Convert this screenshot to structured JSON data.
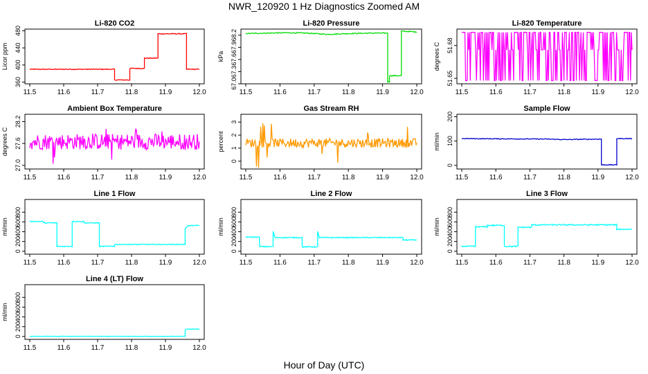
{
  "title": "NWR_120920  1 Hz Diagnostics Zoomed AM",
  "xlabel": "Hour of Day (UTC)",
  "x_ticks": [
    "11.5",
    "11.6",
    "11.7",
    "11.8",
    "11.9",
    "12.0"
  ],
  "chart_data": [
    {
      "type": "line",
      "title": "Li-820 CO2",
      "ylabel": "Licor ppm",
      "color": "#ff0000",
      "xlim": [
        11.5,
        12.0
      ],
      "ylim": [
        356,
        484
      ],
      "y_ticks": [
        "360",
        "400",
        "440",
        "480"
      ],
      "y_tick_values": [
        360,
        400,
        440,
        480
      ],
      "noise": 1,
      "series": [
        {
          "points": [
            [
              11.5,
              390
            ],
            [
              11.75,
              390
            ],
            [
              11.75,
              365
            ],
            [
              11.795,
              365
            ],
            [
              11.795,
              392
            ],
            [
              11.838,
              392
            ],
            [
              11.838,
              416
            ],
            [
              11.878,
              416
            ],
            [
              11.878,
              473
            ],
            [
              11.962,
              473
            ],
            [
              11.962,
              390
            ],
            [
              12.0,
              390
            ]
          ]
        }
      ]
    },
    {
      "type": "line",
      "title": "Li-820 Pressure",
      "ylabel": "kPa",
      "color": "#00dd00",
      "xlim": [
        11.5,
        12.0
      ],
      "ylim": [
        67.0,
        68.35
      ],
      "y_ticks": [
        "67.0",
        "67.3",
        "67.6",
        "67.9",
        "68.2"
      ],
      "y_tick_values": [
        67.0,
        67.3,
        67.6,
        67.9,
        68.2
      ],
      "noise": 0.012,
      "series": [
        {
          "points": [
            [
              11.5,
              68.24
            ],
            [
              11.56,
              68.25
            ],
            [
              11.62,
              68.26
            ],
            [
              11.68,
              68.25
            ],
            [
              11.74,
              68.22
            ],
            [
              11.8,
              68.24
            ],
            [
              11.86,
              68.25
            ],
            [
              11.915,
              68.25
            ],
            [
              11.915,
              67.05
            ],
            [
              11.92,
              67.05
            ],
            [
              11.92,
              67.2
            ],
            [
              11.955,
              67.2
            ],
            [
              11.955,
              68.3
            ],
            [
              12.0,
              68.28
            ]
          ]
        }
      ]
    },
    {
      "type": "line",
      "title": "Li-820 Temperature",
      "ylabel": "degrees C",
      "color": "#ff00ff",
      "xlim": [
        11.5,
        12.0
      ],
      "ylim": [
        51.645,
        51.695
      ],
      "y_ticks": [
        "51.65",
        "51.68"
      ],
      "y_tick_values": [
        51.65,
        51.68
      ],
      "pattern": "bimodal",
      "levels": [
        51.648,
        51.692,
        51.676
      ]
    },
    {
      "type": "line",
      "title": "Ambient Box Temperature",
      "ylabel": "degrees C",
      "color": "#ff00ff",
      "xlim": [
        11.5,
        12.0
      ],
      "ylim": [
        26.9,
        28.4
      ],
      "y_ticks": [
        "27.0",
        "27.6",
        "28.2"
      ],
      "y_tick_values": [
        27.0,
        27.6,
        28.2
      ],
      "noise": 0.22,
      "spikes": 0.55,
      "series": [
        {
          "points": [
            [
              11.5,
              27.65
            ],
            [
              12.0,
              27.65
            ]
          ]
        }
      ]
    },
    {
      "type": "line",
      "title": "Gas Stream RH",
      "ylabel": "percent",
      "color": "#ff9900",
      "xlim": [
        11.5,
        12.0
      ],
      "ylim": [
        -0.6,
        3.6
      ],
      "y_ticks": [
        "0",
        "1",
        "2",
        "3"
      ],
      "y_tick_values": [
        0,
        1,
        2,
        3
      ],
      "noise": 0.35,
      "spikes": 1.8,
      "series": [
        {
          "points": [
            [
              11.5,
              1.4
            ],
            [
              12.0,
              1.4
            ]
          ]
        }
      ]
    },
    {
      "type": "line",
      "title": "Sample Flow",
      "ylabel": "ml/min",
      "color": "#0000cc",
      "xlim": [
        11.5,
        12.0
      ],
      "ylim": [
        -15,
        210
      ],
      "y_ticks": [
        "0",
        "100",
        "200"
      ],
      "y_tick_values": [
        0,
        100,
        200
      ],
      "noise": 1.5,
      "series": [
        {
          "points": [
            [
              11.5,
              110
            ],
            [
              11.75,
              108
            ],
            [
              11.8,
              106
            ],
            [
              11.91,
              108
            ],
            [
              11.91,
              2
            ],
            [
              11.955,
              2
            ],
            [
              11.955,
              110
            ],
            [
              12.0,
              110
            ]
          ]
        }
      ]
    },
    {
      "type": "line",
      "title": "Line 1 Flow",
      "ylabel": "ml/min",
      "color": "#00ffff",
      "xlim": [
        11.5,
        12.0
      ],
      "ylim": [
        -60,
        1060
      ],
      "y_ticks": [
        "0",
        "200",
        "400",
        "600",
        "800"
      ],
      "y_tick_values": [
        0,
        200,
        400,
        600,
        800
      ],
      "noise": 8,
      "series": [
        {
          "points": [
            [
              11.5,
              610
            ],
            [
              11.54,
              610
            ],
            [
              11.54,
              580
            ],
            [
              11.58,
              580
            ],
            [
              11.58,
              100
            ],
            [
              11.625,
              100
            ],
            [
              11.625,
              610
            ],
            [
              11.66,
              610
            ],
            [
              11.66,
              580
            ],
            [
              11.705,
              580
            ],
            [
              11.705,
              100
            ],
            [
              11.75,
              100
            ],
            [
              11.75,
              140
            ],
            [
              11.958,
              140
            ],
            [
              11.958,
              460
            ],
            [
              11.965,
              520
            ],
            [
              12.0,
              530
            ]
          ]
        }
      ]
    },
    {
      "type": "line",
      "title": "Line 2 Flow",
      "ylabel": "ml/min",
      "color": "#00ffff",
      "xlim": [
        11.5,
        12.0
      ],
      "ylim": [
        -60,
        1060
      ],
      "y_ticks": [
        "0",
        "200",
        "400",
        "600",
        "800"
      ],
      "y_tick_values": [
        0,
        200,
        400,
        600,
        800
      ],
      "noise": 10,
      "series": [
        {
          "points": [
            [
              11.5,
              290
            ],
            [
              11.54,
              290
            ],
            [
              11.54,
              95
            ],
            [
              11.58,
              95
            ],
            [
              11.58,
              410
            ],
            [
              11.585,
              280
            ],
            [
              11.665,
              280
            ],
            [
              11.665,
              90
            ],
            [
              11.71,
              90
            ],
            [
              11.71,
              400
            ],
            [
              11.715,
              280
            ],
            [
              11.96,
              280
            ],
            [
              11.96,
              230
            ],
            [
              12.0,
              230
            ]
          ]
        }
      ]
    },
    {
      "type": "line",
      "title": "Line 3 Flow",
      "ylabel": "ml/min",
      "color": "#00ffff",
      "xlim": [
        11.5,
        12.0
      ],
      "ylim": [
        -60,
        1060
      ],
      "y_ticks": [
        "0",
        "200",
        "400",
        "600",
        "800"
      ],
      "y_tick_values": [
        0,
        200,
        400,
        600,
        800
      ],
      "noise": 12,
      "series": [
        {
          "points": [
            [
              11.5,
              100
            ],
            [
              11.54,
              100
            ],
            [
              11.54,
              500
            ],
            [
              11.575,
              500
            ],
            [
              11.575,
              530
            ],
            [
              11.625,
              530
            ],
            [
              11.625,
              100
            ],
            [
              11.665,
              100
            ],
            [
              11.665,
              490
            ],
            [
              11.705,
              490
            ],
            [
              11.705,
              540
            ],
            [
              11.955,
              540
            ],
            [
              11.955,
              450
            ],
            [
              12.0,
              450
            ]
          ]
        }
      ]
    },
    {
      "type": "line",
      "title": "Line 4 (LT) Flow",
      "ylabel": "ml/min",
      "color": "#00ffff",
      "xlim": [
        11.5,
        12.0
      ],
      "ylim": [
        -60,
        1060
      ],
      "y_ticks": [
        "0",
        "200",
        "400",
        "600",
        "800"
      ],
      "y_tick_values": [
        0,
        200,
        400,
        600,
        800
      ],
      "noise": 2,
      "series": [
        {
          "points": [
            [
              11.5,
              3
            ],
            [
              11.958,
              3
            ],
            [
              11.958,
              120
            ],
            [
              11.963,
              150
            ],
            [
              12.0,
              150
            ]
          ]
        }
      ]
    }
  ]
}
